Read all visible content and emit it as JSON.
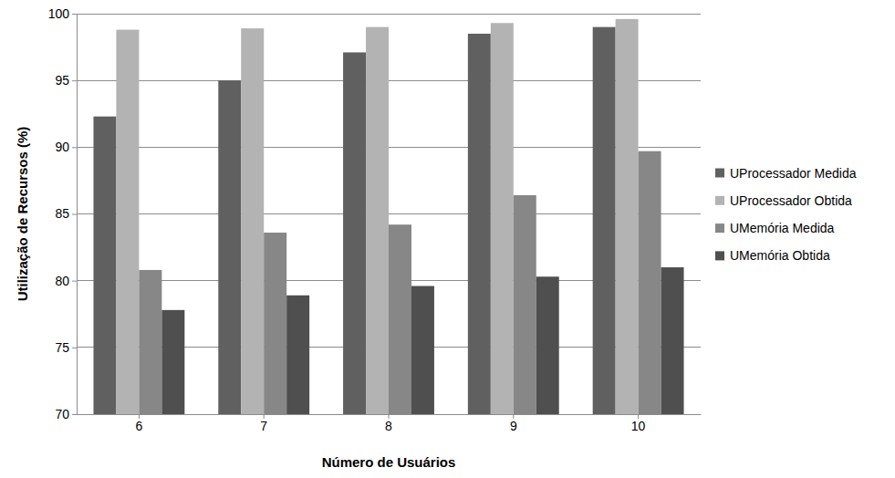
{
  "chart_data": {
    "type": "bar",
    "x_label": "Número de Usuários",
    "y_label": "Utilização de Recursos (%)",
    "categories": [
      "6",
      "7",
      "8",
      "9",
      "10"
    ],
    "series": [
      {
        "name": "UProcessador Medida",
        "color": "#606060",
        "values": [
          92.3,
          95.0,
          97.1,
          98.5,
          99.0
        ]
      },
      {
        "name": "UProcessador Obtida",
        "color": "#b3b3b3",
        "values": [
          98.8,
          98.9,
          99.0,
          99.3,
          99.6
        ]
      },
      {
        "name": "UMemória Medida",
        "color": "#878787",
        "values": [
          80.8,
          83.6,
          84.2,
          86.4,
          89.7
        ]
      },
      {
        "name": "UMemória Obtida",
        "color": "#4f4f4f",
        "values": [
          77.8,
          78.9,
          79.6,
          80.3,
          81.0
        ]
      }
    ],
    "ylim": [
      70,
      100
    ],
    "yticks": [
      70,
      75,
      80,
      85,
      90,
      95,
      100
    ],
    "grid": true,
    "legend": "right"
  }
}
